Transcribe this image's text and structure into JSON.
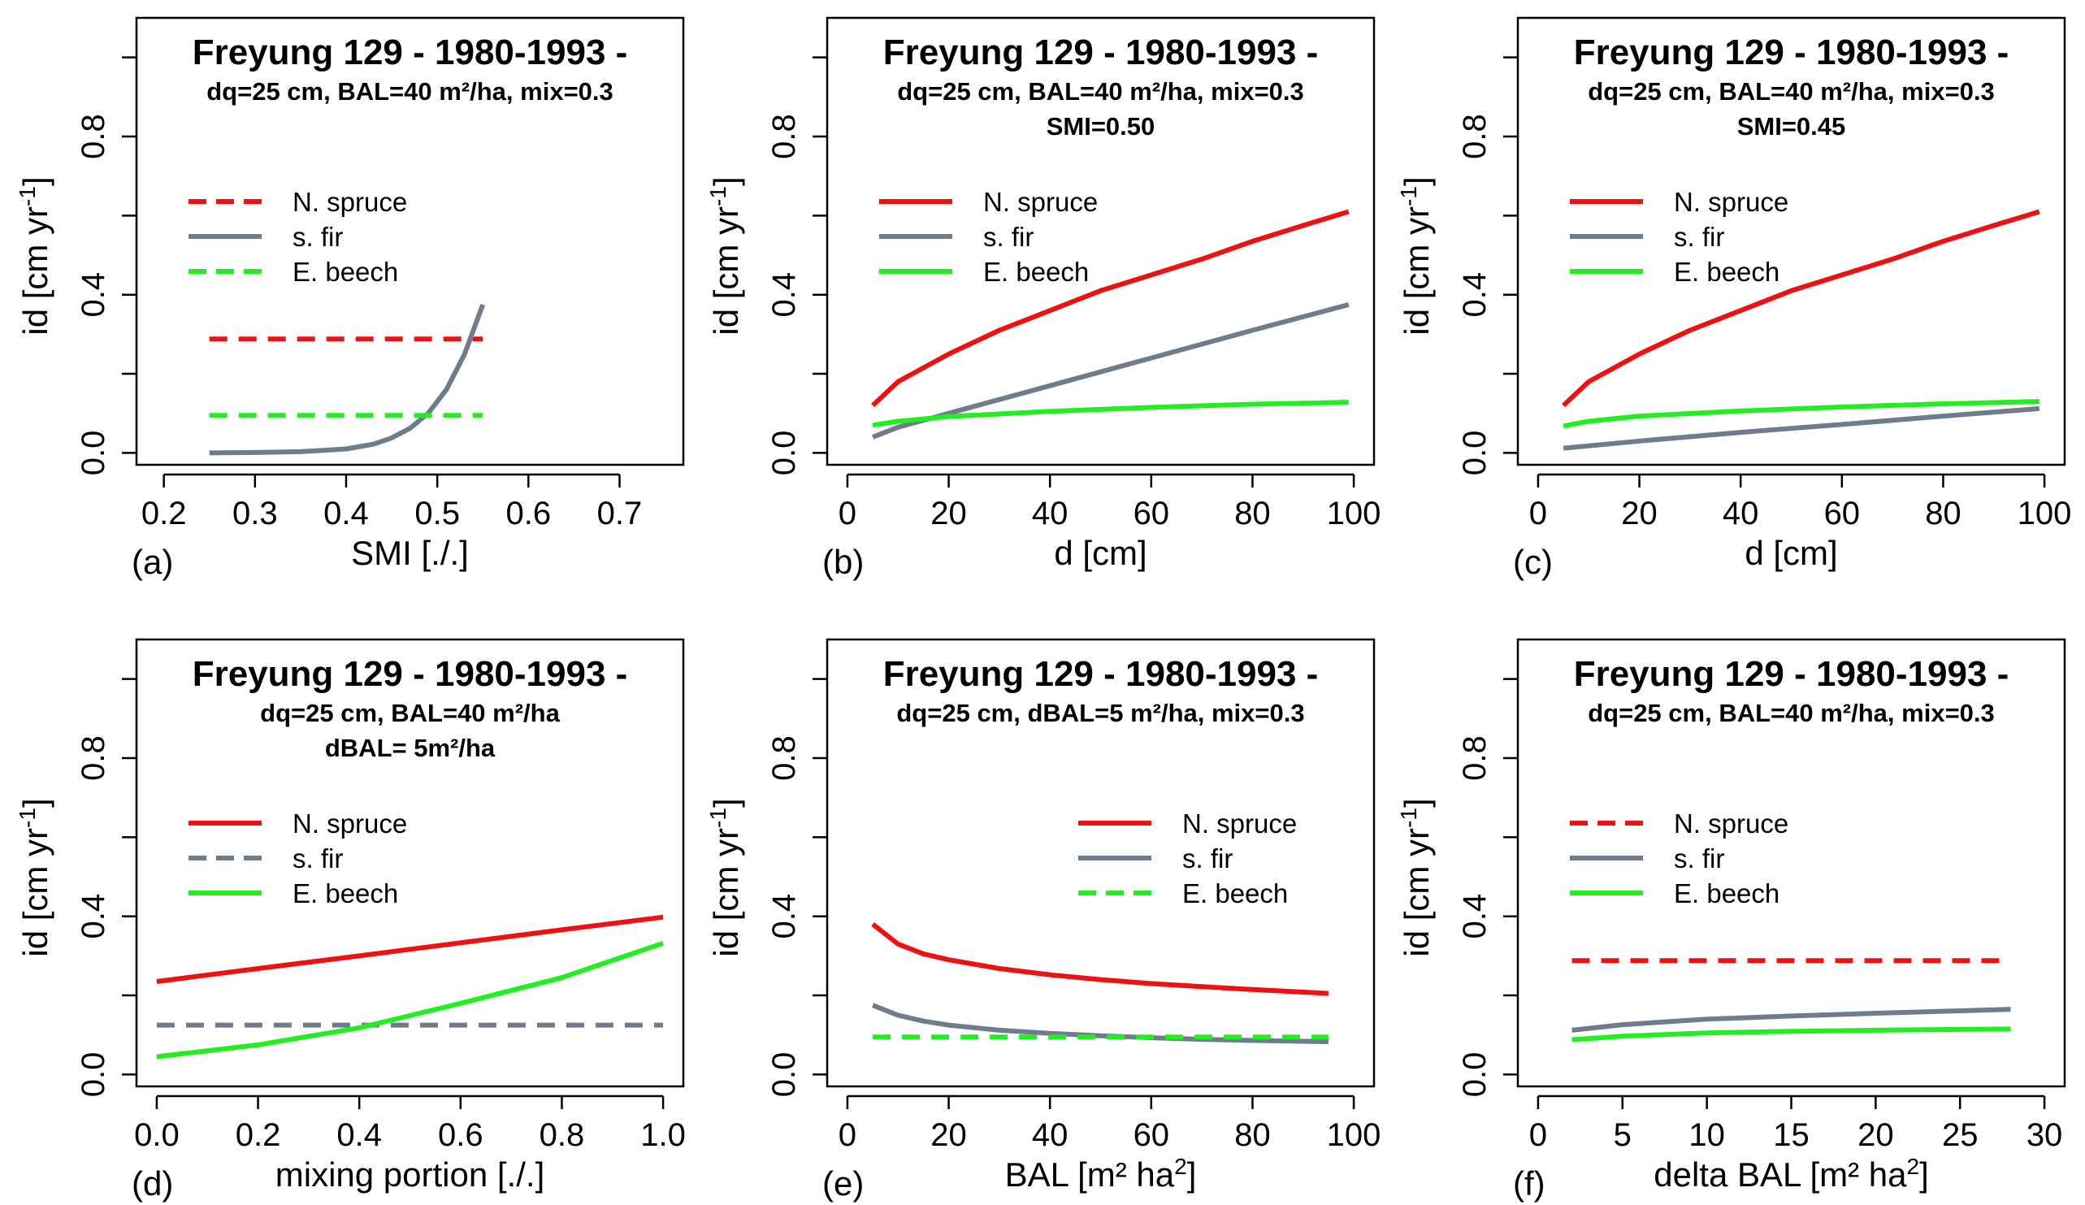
{
  "colors": {
    "spruce": "#ee1111",
    "fir": "#6e7c8c",
    "beech": "#22ee22",
    "axis": "#000000"
  },
  "chart_data": [
    {
      "type": "line",
      "panel_label": "(a)",
      "title": "Freyung 129 - 1980-1993 -",
      "subtitle": [
        "dq=25 cm, BAL=40 m²/ha, mix=0.3"
      ],
      "xlabel": "SMI [./.]",
      "ylabel": "id [cm yr",
      "ylabel_sup": "-1",
      "ylabel_end": "]",
      "xlim": [
        0.17,
        0.77
      ],
      "ylim": [
        -0.03,
        1.1
      ],
      "xticks": [
        0.2,
        0.3,
        0.4,
        0.5,
        0.6,
        0.7
      ],
      "xtick_labels": [
        "0.2",
        "0.3",
        "0.4",
        "0.5",
        "0.6",
        "0.7"
      ],
      "yticks": [
        0.0,
        0.4,
        0.8
      ],
      "ytick_labels": [
        "0.0",
        "0.4",
        "0.8"
      ],
      "yminor_ticks": [
        0.2,
        0.6,
        1.0
      ],
      "legend": {
        "position": "left",
        "entries": [
          {
            "name": "N. spruce",
            "series": "spruce",
            "dash": true
          },
          {
            "name": "s. fir",
            "series": "fir",
            "dash": false
          },
          {
            "name": "E. beech",
            "series": "beech",
            "dash": true
          }
        ]
      },
      "series": [
        {
          "name": "N. spruce",
          "color_key": "spruce",
          "dash": true,
          "x": [
            0.25,
            0.55
          ],
          "y": [
            0.288,
            0.288
          ]
        },
        {
          "name": "s. fir",
          "color_key": "fir",
          "dash": false,
          "x": [
            0.25,
            0.3,
            0.35,
            0.4,
            0.43,
            0.45,
            0.47,
            0.49,
            0.51,
            0.53,
            0.55
          ],
          "y": [
            0.0,
            0.001,
            0.003,
            0.01,
            0.022,
            0.038,
            0.062,
            0.1,
            0.16,
            0.25,
            0.375
          ]
        },
        {
          "name": "E. beech",
          "color_key": "beech",
          "dash": true,
          "x": [
            0.25,
            0.55
          ],
          "y": [
            0.095,
            0.095
          ]
        }
      ]
    },
    {
      "type": "line",
      "panel_label": "(b)",
      "title": "Freyung 129 - 1980-1993 -",
      "subtitle": [
        "dq=25 cm, BAL=40 m²/ha, mix=0.3",
        "SMI=0.50"
      ],
      "xlabel": "d [cm]",
      "ylabel": "id [cm yr",
      "ylabel_sup": "-1",
      "ylabel_end": "]",
      "xlim": [
        -4,
        104
      ],
      "ylim": [
        -0.03,
        1.1
      ],
      "xticks": [
        0,
        20,
        40,
        60,
        80,
        100
      ],
      "xtick_labels": [
        "0",
        "20",
        "40",
        "60",
        "80",
        "100"
      ],
      "yticks": [
        0.0,
        0.4,
        0.8
      ],
      "ytick_labels": [
        "0.0",
        "0.4",
        "0.8"
      ],
      "yminor_ticks": [
        0.2,
        0.6,
        1.0
      ],
      "legend": {
        "position": "top-left",
        "entries": [
          {
            "name": "N. spruce",
            "series": "spruce",
            "dash": false
          },
          {
            "name": "s. fir",
            "series": "fir",
            "dash": false
          },
          {
            "name": "E. beech",
            "series": "beech",
            "dash": false
          }
        ]
      },
      "series": [
        {
          "name": "N. spruce",
          "color_key": "spruce",
          "dash": false,
          "x": [
            5,
            10,
            20,
            30,
            40,
            50,
            60,
            70,
            80,
            90,
            99
          ],
          "y": [
            0.12,
            0.18,
            0.25,
            0.31,
            0.36,
            0.41,
            0.45,
            0.49,
            0.535,
            0.575,
            0.61
          ]
        },
        {
          "name": "s. fir",
          "color_key": "fir",
          "dash": false,
          "x": [
            5,
            10,
            20,
            40,
            60,
            80,
            99
          ],
          "y": [
            0.04,
            0.065,
            0.1,
            0.17,
            0.24,
            0.31,
            0.375
          ]
        },
        {
          "name": "E. beech",
          "color_key": "beech",
          "dash": false,
          "x": [
            5,
            10,
            20,
            40,
            60,
            80,
            99
          ],
          "y": [
            0.07,
            0.08,
            0.092,
            0.105,
            0.115,
            0.123,
            0.128
          ]
        }
      ]
    },
    {
      "type": "line",
      "panel_label": "(c)",
      "title": "Freyung 129 - 1980-1993 -",
      "subtitle": [
        "dq=25 cm, BAL=40 m²/ha, mix=0.3",
        "SMI=0.45"
      ],
      "xlabel": "d [cm]",
      "ylabel": "id [cm yr",
      "ylabel_sup": "-1",
      "ylabel_end": "]",
      "xlim": [
        -4,
        104
      ],
      "ylim": [
        -0.03,
        1.1
      ],
      "xticks": [
        0,
        20,
        40,
        60,
        80,
        100
      ],
      "xtick_labels": [
        "0",
        "20",
        "40",
        "60",
        "80",
        "100"
      ],
      "yticks": [
        0.0,
        0.4,
        0.8
      ],
      "ytick_labels": [
        "0.0",
        "0.4",
        "0.8"
      ],
      "yminor_ticks": [
        0.2,
        0.6,
        1.0
      ],
      "legend": {
        "position": "top-left",
        "entries": [
          {
            "name": "N. spruce",
            "series": "spruce",
            "dash": false
          },
          {
            "name": "s. fir",
            "series": "fir",
            "dash": false
          },
          {
            "name": "E. beech",
            "series": "beech",
            "dash": false
          }
        ]
      },
      "series": [
        {
          "name": "N. spruce",
          "color_key": "spruce",
          "dash": false,
          "x": [
            5,
            10,
            20,
            30,
            40,
            50,
            60,
            70,
            80,
            90,
            99
          ],
          "y": [
            0.12,
            0.18,
            0.25,
            0.31,
            0.36,
            0.41,
            0.45,
            0.49,
            0.535,
            0.575,
            0.61
          ]
        },
        {
          "name": "s. fir",
          "color_key": "fir",
          "dash": false,
          "x": [
            5,
            20,
            40,
            60,
            80,
            99
          ],
          "y": [
            0.012,
            0.03,
            0.052,
            0.072,
            0.093,
            0.112
          ]
        },
        {
          "name": "E. beech",
          "color_key": "beech",
          "dash": false,
          "x": [
            5,
            10,
            20,
            40,
            60,
            80,
            99
          ],
          "y": [
            0.068,
            0.08,
            0.093,
            0.106,
            0.116,
            0.124,
            0.13
          ]
        }
      ]
    },
    {
      "type": "line",
      "panel_label": "(d)",
      "title": "Freyung 129 - 1980-1993 -",
      "subtitle": [
        "dq=25 cm, BAL=40 m²/ha",
        "dBAL= 5m²/ha"
      ],
      "xlabel": "mixing portion [./.]",
      "ylabel": "id [cm yr",
      "ylabel_sup": "-1",
      "ylabel_end": "]",
      "xlim": [
        -0.04,
        1.04
      ],
      "ylim": [
        -0.03,
        1.1
      ],
      "xticks": [
        0.0,
        0.2,
        0.4,
        0.6,
        0.8,
        1.0
      ],
      "xtick_labels": [
        "0.0",
        "0.2",
        "0.4",
        "0.6",
        "0.8",
        "1.0"
      ],
      "yticks": [
        0.0,
        0.4,
        0.8
      ],
      "ytick_labels": [
        "0.0",
        "0.4",
        "0.8"
      ],
      "yminor_ticks": [
        0.2,
        0.6,
        1.0
      ],
      "legend": {
        "position": "left",
        "entries": [
          {
            "name": "N. spruce",
            "series": "spruce",
            "dash": false
          },
          {
            "name": "s. fir",
            "series": "fir",
            "dash": true
          },
          {
            "name": "E. beech",
            "series": "beech",
            "dash": false
          }
        ]
      },
      "series": [
        {
          "name": "N. spruce",
          "color_key": "spruce",
          "dash": false,
          "x": [
            0.0,
            0.2,
            0.4,
            0.6,
            0.8,
            1.0
          ],
          "y": [
            0.235,
            0.268,
            0.3,
            0.333,
            0.366,
            0.398
          ]
        },
        {
          "name": "s. fir",
          "color_key": "fir",
          "dash": true,
          "x": [
            0.0,
            1.0
          ],
          "y": [
            0.125,
            0.125
          ]
        },
        {
          "name": "E. beech",
          "color_key": "beech",
          "dash": false,
          "x": [
            0.0,
            0.2,
            0.4,
            0.6,
            0.8,
            1.0
          ],
          "y": [
            0.045,
            0.075,
            0.118,
            0.18,
            0.245,
            0.332
          ]
        }
      ]
    },
    {
      "type": "line",
      "panel_label": "(e)",
      "title": "Freyung 129 - 1980-1993 -",
      "subtitle": [
        "dq=25 cm, dBAL=5 m²/ha, mix=0.3"
      ],
      "xlabel": "BAL [m² ha",
      "xlabel_sup": "2",
      "xlabel_end": "]",
      "ylabel": "id [cm yr",
      "ylabel_sup": "-1",
      "ylabel_end": "]",
      "xlim": [
        -4,
        104
      ],
      "ylim": [
        -0.03,
        1.1
      ],
      "xticks": [
        0,
        20,
        40,
        60,
        80,
        100
      ],
      "xtick_labels": [
        "0",
        "20",
        "40",
        "60",
        "80",
        "100"
      ],
      "yticks": [
        0.0,
        0.4,
        0.8
      ],
      "ytick_labels": [
        "0.0",
        "0.4",
        "0.8"
      ],
      "yminor_ticks": [
        0.2,
        0.6,
        1.0
      ],
      "legend": {
        "position": "right",
        "entries": [
          {
            "name": "N. spruce",
            "series": "spruce",
            "dash": false
          },
          {
            "name": "s. fir",
            "series": "fir",
            "dash": false
          },
          {
            "name": "E. beech",
            "series": "beech",
            "dash": true
          }
        ]
      },
      "series": [
        {
          "name": "N. spruce",
          "color_key": "spruce",
          "dash": false,
          "x": [
            5,
            10,
            15,
            20,
            30,
            40,
            50,
            60,
            70,
            80,
            95
          ],
          "y": [
            0.38,
            0.33,
            0.305,
            0.29,
            0.268,
            0.252,
            0.24,
            0.23,
            0.222,
            0.215,
            0.205
          ]
        },
        {
          "name": "s. fir",
          "color_key": "fir",
          "dash": false,
          "x": [
            5,
            10,
            15,
            20,
            30,
            40,
            50,
            60,
            70,
            80,
            95
          ],
          "y": [
            0.175,
            0.15,
            0.135,
            0.125,
            0.112,
            0.104,
            0.098,
            0.093,
            0.089,
            0.086,
            0.083
          ]
        },
        {
          "name": "E. beech",
          "color_key": "beech",
          "dash": true,
          "x": [
            5,
            95
          ],
          "y": [
            0.095,
            0.095
          ]
        }
      ]
    },
    {
      "type": "line",
      "panel_label": "(f)",
      "title": "Freyung 129 - 1980-1993 -",
      "subtitle": [
        "dq=25 cm, BAL=40 m²/ha, mix=0.3"
      ],
      "xlabel": "delta BAL [m² ha",
      "xlabel_sup": "2",
      "xlabel_end": "]",
      "ylabel": "id [cm yr",
      "ylabel_sup": "-1",
      "ylabel_end": "]",
      "xlim": [
        -1.2,
        31.2
      ],
      "ylim": [
        -0.03,
        1.1
      ],
      "xticks": [
        0,
        5,
        10,
        15,
        20,
        25,
        30
      ],
      "xtick_labels": [
        "0",
        "5",
        "10",
        "15",
        "20",
        "25",
        "30"
      ],
      "yticks": [
        0.0,
        0.4,
        0.8
      ],
      "ytick_labels": [
        "0.0",
        "0.4",
        "0.8"
      ],
      "yminor_ticks": [
        0.2,
        0.6,
        1.0
      ],
      "legend": {
        "position": "left",
        "entries": [
          {
            "name": "N. spruce",
            "series": "spruce",
            "dash": true
          },
          {
            "name": "s. fir",
            "series": "fir",
            "dash": false
          },
          {
            "name": "E. beech",
            "series": "beech",
            "dash": false
          }
        ]
      },
      "series": [
        {
          "name": "N. spruce",
          "color_key": "spruce",
          "dash": true,
          "x": [
            2,
            28
          ],
          "y": [
            0.288,
            0.288
          ]
        },
        {
          "name": "s. fir",
          "color_key": "fir",
          "dash": false,
          "x": [
            2,
            5,
            10,
            15,
            20,
            25,
            28
          ],
          "y": [
            0.112,
            0.126,
            0.14,
            0.148,
            0.155,
            0.161,
            0.165
          ]
        },
        {
          "name": "E. beech",
          "color_key": "beech",
          "dash": false,
          "x": [
            2,
            5,
            10,
            15,
            20,
            25,
            28
          ],
          "y": [
            0.088,
            0.097,
            0.105,
            0.109,
            0.112,
            0.114,
            0.115
          ]
        }
      ]
    }
  ]
}
